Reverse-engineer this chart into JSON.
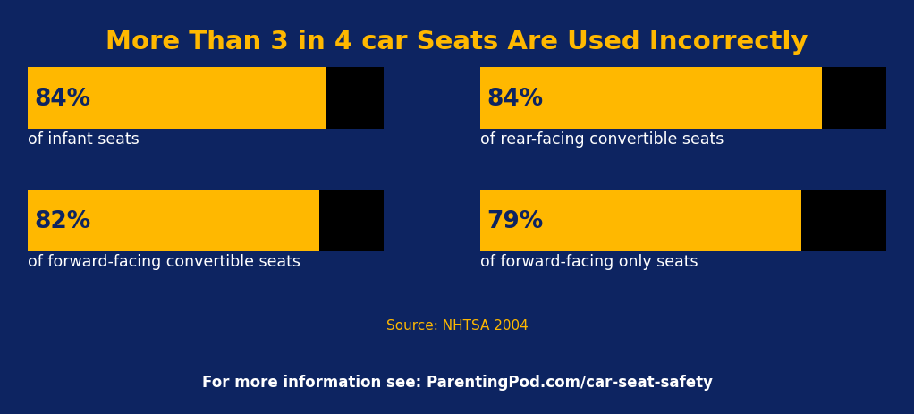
{
  "title": "More Than 3 in 4 car Seats Are Used Incorrectly",
  "title_color": "#FFB800",
  "bg_color": "#0D2461",
  "footer_bg_color": "#091840",
  "footer_text": "For more information see: ParentingPod.com/car-seat-safety",
  "footer_text_color": "#FFFFFF",
  "source_text": "Source: NHTSA 2004",
  "source_color": "#FFB800",
  "bar_yellow": "#FFB800",
  "bar_black": "#000000",
  "label_color": "#FFFFFF",
  "pct_color": "#0D2461",
  "bars": [
    {
      "pct": 84,
      "label": "of infant seats",
      "col": 0,
      "row": 0
    },
    {
      "pct": 84,
      "label": "of rear-facing convertible seats",
      "col": 1,
      "row": 0
    },
    {
      "pct": 82,
      "label": "of forward-facing convertible seats",
      "col": 0,
      "row": 1
    },
    {
      "pct": 79,
      "label": "of forward-facing only seats",
      "col": 1,
      "row": 1
    }
  ],
  "figsize": [
    10.22,
    4.64
  ],
  "dpi": 100
}
